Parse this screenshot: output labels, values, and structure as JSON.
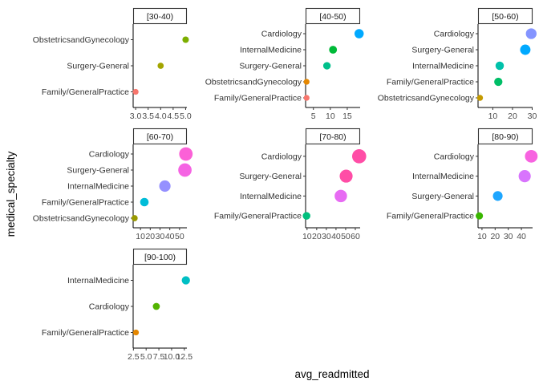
{
  "chart_data": {
    "type": "scatter",
    "xlabel": "avg_readmitted",
    "ylabel": "medical_specialty",
    "color_map": {
      "ObstetricsandGynecology": "#c77c00",
      "Family/GeneralPractice": "#e8735a",
      "Surgery-General": "#7cae00",
      "InternalMedicine": "#00ba38",
      "Cardiology": "#00a9ff"
    },
    "panels": [
      {
        "title": "[30-40)",
        "categories": [
          "Family/GeneralPractice",
          "Surgery-General",
          "ObstetricsandGynecology"
        ],
        "xlim": [
          2.9,
          5.05
        ],
        "xticks": [
          3.0,
          3.5,
          4.0,
          4.5,
          5.0
        ],
        "xtick_labels": [
          "3.0",
          "3.5",
          "4.0",
          "4.5",
          "5.0"
        ],
        "points": [
          {
            "category": "ObstetricsandGynecology",
            "x": 5.0,
            "color": "#7cae00"
          },
          {
            "category": "Surgery-General",
            "x": 4.0,
            "color": "#a3a500"
          },
          {
            "category": "Family/GeneralPractice",
            "x": 3.0,
            "color": "#f8766d"
          }
        ]
      },
      {
        "title": "[40-50)",
        "categories": [
          "Family/GeneralPractice",
          "ObstetricsandGynecology",
          "Surgery-General",
          "InternalMedicine",
          "Cardiology"
        ],
        "xlim": [
          2.7,
          18.8
        ],
        "xticks": [
          5,
          10,
          15
        ],
        "xtick_labels": [
          "5",
          "10",
          "15"
        ],
        "points": [
          {
            "category": "Cardiology",
            "x": 18.5,
            "color": "#00a9ff"
          },
          {
            "category": "InternalMedicine",
            "x": 10.8,
            "color": "#00ba38"
          },
          {
            "category": "Surgery-General",
            "x": 9.0,
            "color": "#00c08b"
          },
          {
            "category": "ObstetricsandGynecology",
            "x": 3.0,
            "color": "#e58700"
          },
          {
            "category": "Family/GeneralPractice",
            "x": 3.0,
            "color": "#f8766d"
          }
        ]
      },
      {
        "title": "[50-60)",
        "categories": [
          "ObstetricsandGynecology",
          "Family/GeneralPractice",
          "InternalMedicine",
          "Surgery-General",
          "Cardiology"
        ],
        "xlim": [
          2.5,
          30.2
        ],
        "xticks": [
          10,
          20,
          30
        ],
        "xtick_labels": [
          "10",
          "20",
          "30"
        ],
        "points": [
          {
            "category": "Cardiology",
            "x": 29.5,
            "color": "#8494ff"
          },
          {
            "category": "Surgery-General",
            "x": 26.5,
            "color": "#00a9ff"
          },
          {
            "category": "InternalMedicine",
            "x": 13.5,
            "color": "#00c1aa"
          },
          {
            "category": "Family/GeneralPractice",
            "x": 12.8,
            "color": "#00be67"
          },
          {
            "category": "ObstetricsandGynecology",
            "x": 3.5,
            "color": "#c49a00"
          }
        ]
      },
      {
        "title": "[60-70)",
        "categories": [
          "ObstetricsandGynecology",
          "Family/GeneralPractice",
          "InternalMedicine",
          "Surgery-General",
          "Cardiology"
        ],
        "xlim": [
          2.5,
          57.5
        ],
        "xticks": [
          10,
          20,
          30,
          40,
          50
        ],
        "xtick_labels": [
          "10",
          "20",
          "30",
          "40",
          "50"
        ],
        "points": [
          {
            "category": "Cardiology",
            "x": 56.5,
            "color": "#fb61d7"
          },
          {
            "category": "Surgery-General",
            "x": 55.5,
            "color": "#f564e3"
          },
          {
            "category": "InternalMedicine",
            "x": 35.0,
            "color": "#9590ff"
          },
          {
            "category": "Family/GeneralPractice",
            "x": 14.0,
            "color": "#00bcd8"
          },
          {
            "category": "ObstetricsandGynecology",
            "x": 4.0,
            "color": "#999900"
          }
        ]
      },
      {
        "title": "[70-80)",
        "categories": [
          "Family/GeneralPractice",
          "InternalMedicine",
          "Surgery-General",
          "Cardiology"
        ],
        "xlim": [
          8.5,
          65.0
        ],
        "xticks": [
          10,
          20,
          30,
          40,
          50,
          60
        ],
        "xtick_labels": [
          "10",
          "20",
          "30",
          "40",
          "50",
          "60"
        ],
        "points": [
          {
            "category": "Cardiology",
            "x": 64.0,
            "color": "#ff4da6"
          },
          {
            "category": "Surgery-General",
            "x": 50.5,
            "color": "#ff4da6"
          },
          {
            "category": "InternalMedicine",
            "x": 45.0,
            "color": "#e76bf3"
          },
          {
            "category": "Family/GeneralPractice",
            "x": 9.5,
            "color": "#00bf7d"
          }
        ]
      },
      {
        "title": "[80-90)",
        "categories": [
          "Family/GeneralPractice",
          "Surgery-General",
          "InternalMedicine",
          "Cardiology"
        ],
        "xlim": [
          7.0,
          48.5
        ],
        "xticks": [
          10,
          20,
          30,
          40
        ],
        "xtick_labels": [
          "10",
          "20",
          "30",
          "40"
        ],
        "points": [
          {
            "category": "Cardiology",
            "x": 47.5,
            "color": "#f763e0"
          },
          {
            "category": "InternalMedicine",
            "x": 42.5,
            "color": "#d874fd"
          },
          {
            "category": "Surgery-General",
            "x": 22.0,
            "color": "#1ea6ff"
          },
          {
            "category": "Family/GeneralPractice",
            "x": 8.0,
            "color": "#39b600"
          }
        ]
      },
      {
        "title": "[90-100)",
        "categories": [
          "Family/GeneralPractice",
          "Cardiology",
          "InternalMedicine"
        ],
        "xlim": [
          2.45,
          13.0
        ],
        "xticks": [
          2.5,
          5.0,
          7.5,
          10.0,
          12.5
        ],
        "xtick_labels": [
          "2.5",
          "5.0",
          "7.5",
          "10.0",
          "12.5"
        ],
        "points": [
          {
            "category": "InternalMedicine",
            "x": 12.8,
            "color": "#00bfc4"
          },
          {
            "category": "Cardiology",
            "x": 7.0,
            "color": "#53b400"
          },
          {
            "category": "Family/GeneralPractice",
            "x": 3.0,
            "color": "#e58700"
          }
        ]
      }
    ]
  }
}
